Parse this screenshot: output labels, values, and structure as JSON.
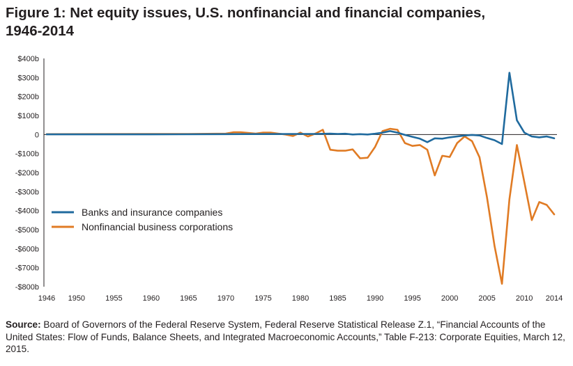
{
  "title_line1": "Figure 1: Net equity issues, U.S. nonfinancial and financial companies,",
  "title_line2": "1946-2014",
  "source": {
    "label": "Source:",
    "text": "Board of Governors of the Federal Reserve System, Federal Reserve Statistical Release Z.1, “Financial Accounts of the United States: Flow of Funds, Balance Sheets, and Integrated Macroeconomic Accounts,” Table F-213: Corporate Equities, March 12, 2015."
  },
  "chart_data": {
    "type": "line",
    "title": "Figure 1: Net equity issues, U.S. nonfinancial and financial companies, 1946-2014",
    "xlabel": "",
    "ylabel": "",
    "xlim": [
      1946,
      2014
    ],
    "ylim": [
      -800,
      400
    ],
    "grid": false,
    "legend_position": "lower-left",
    "y_ticks": [
      400,
      300,
      200,
      100,
      0,
      -100,
      -200,
      -300,
      -400,
      -500,
      -600,
      -700,
      -800
    ],
    "y_tick_labels": [
      "$400b",
      "$300b",
      "$200b",
      "$100b",
      "0",
      "-$100b",
      "-$200b",
      "-$300b",
      "-$400b",
      "-$500b",
      "-$600b",
      "-$700b",
      "-$800b"
    ],
    "x_ticks": [
      1946,
      1950,
      1955,
      1960,
      1965,
      1970,
      1975,
      1980,
      1985,
      1990,
      1995,
      2000,
      2005,
      2010,
      2014
    ],
    "x_tick_labels": [
      "1946",
      "1950",
      "1955",
      "1960",
      "1965",
      "1970",
      "1975",
      "1980",
      "1985",
      "1990",
      "1995",
      "2000",
      "2005",
      "2010",
      "2014"
    ],
    "series": [
      {
        "name": "Banks and insurance companies",
        "color": "#1f6a9e",
        "x": [
          1946,
          1960,
          1970,
          1980,
          1982,
          1984,
          1985,
          1986,
          1987,
          1988,
          1989,
          1990,
          1991,
          1992,
          1993,
          1994,
          1995,
          1996,
          1997,
          1998,
          1999,
          2000,
          2001,
          2002,
          2003,
          2004,
          2005,
          2006,
          2007,
          2008,
          2009,
          2010,
          2011,
          2012,
          2013,
          2014
        ],
        "values": [
          1,
          1,
          2,
          3,
          3,
          5,
          3,
          4,
          0,
          2,
          0,
          4,
          10,
          18,
          10,
          -2,
          -12,
          -22,
          -40,
          -20,
          -22,
          -15,
          -10,
          -5,
          -2,
          -5,
          -18,
          -30,
          -50,
          325,
          75,
          10,
          -10,
          -15,
          -10,
          -20
        ]
      },
      {
        "name": "Nonfinancial business corporations",
        "color": "#e07b24",
        "x": [
          1946,
          1960,
          1965,
          1970,
          1971,
          1972,
          1973,
          1974,
          1975,
          1976,
          1977,
          1978,
          1979,
          1980,
          1981,
          1982,
          1983,
          1984,
          1985,
          1986,
          1987,
          1988,
          1989,
          1990,
          1991,
          1992,
          1993,
          1994,
          1995,
          1996,
          1997,
          1998,
          1999,
          2000,
          2001,
          2002,
          2003,
          2004,
          2005,
          2006,
          2007,
          2008,
          2009,
          2010,
          2011,
          2012,
          2013,
          2014
        ],
        "values": [
          2,
          3,
          3,
          5,
          12,
          12,
          8,
          5,
          10,
          10,
          5,
          0,
          -8,
          10,
          -10,
          5,
          25,
          -80,
          -85,
          -85,
          -78,
          -125,
          -122,
          -65,
          18,
          30,
          25,
          -45,
          -60,
          -55,
          -80,
          -215,
          -112,
          -118,
          -45,
          -10,
          -35,
          -120,
          -330,
          -585,
          -785,
          -340,
          -55,
          -250,
          -450,
          -355,
          -370,
          -420
        ]
      }
    ]
  }
}
